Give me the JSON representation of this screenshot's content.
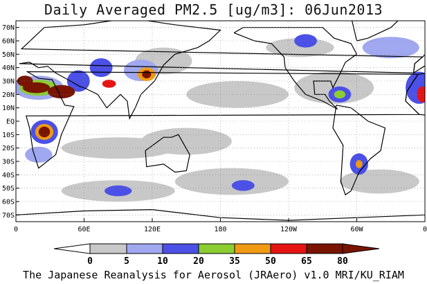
{
  "title": "Daily Averaged PM2.5 [ug/m3]: 06Jun2013",
  "footer": "The Japanese Reanalysis for Aerosol (JRAero) v1.0 MRI/KU_RIAM",
  "lat_labels": [
    "70N",
    "60N",
    "50N",
    "40N",
    "30N",
    "20N",
    "10N",
    "EQ",
    "10S",
    "20S",
    "30S",
    "40S",
    "50S",
    "60S",
    "70S"
  ],
  "lon_labels": [
    "0",
    "60E",
    "120E",
    "180",
    "120W",
    "60W",
    "0"
  ],
  "colorbar": {
    "ticks": [
      "0",
      "5",
      "10",
      "20",
      "35",
      "50",
      "65",
      "80"
    ],
    "colors": [
      "#ffffff",
      "#c8c8c8",
      "#a0a8f0",
      "#4b50e6",
      "#8ccd32",
      "#f09a14",
      "#e61414",
      "#781400"
    ]
  },
  "map": {
    "lat_range": [
      -75,
      75
    ],
    "lon_range": [
      0,
      360
    ],
    "grid": true,
    "regions": [
      {
        "lon": 20,
        "lat": 25,
        "rx": 22,
        "ry": 9,
        "level": 2
      },
      {
        "lon": 20,
        "lat": 25,
        "rx": 17,
        "ry": 6,
        "level": 4
      },
      {
        "lon": 18,
        "lat": 25,
        "rx": 12,
        "ry": 4,
        "level": 7
      },
      {
        "lon": 40,
        "lat": 22,
        "rx": 12,
        "ry": 5,
        "level": 7
      },
      {
        "lon": 8,
        "lat": 30,
        "rx": 7,
        "ry": 4,
        "level": 7
      },
      {
        "lon": 55,
        "lat": 30,
        "rx": 10,
        "ry": 8,
        "level": 3
      },
      {
        "lon": 75,
        "lat": 40,
        "rx": 10,
        "ry": 7,
        "level": 3
      },
      {
        "lon": 82,
        "lat": 28,
        "rx": 6,
        "ry": 3,
        "level": 6
      },
      {
        "lon": 110,
        "lat": 38,
        "rx": 15,
        "ry": 8,
        "level": 2
      },
      {
        "lon": 115,
        "lat": 35,
        "rx": 8,
        "ry": 5,
        "level": 5
      },
      {
        "lon": 115,
        "lat": 35,
        "rx": 4,
        "ry": 3,
        "level": 7
      },
      {
        "lon": 130,
        "lat": 45,
        "rx": 25,
        "ry": 10,
        "level": 1
      },
      {
        "lon": 25,
        "lat": -8,
        "rx": 12,
        "ry": 9,
        "level": 3
      },
      {
        "lon": 25,
        "lat": -8,
        "rx": 8,
        "ry": 6,
        "level": 5
      },
      {
        "lon": 25,
        "lat": -8,
        "rx": 5,
        "ry": 4,
        "level": 7
      },
      {
        "lon": 20,
        "lat": -25,
        "rx": 12,
        "ry": 6,
        "level": 2
      },
      {
        "lon": 195,
        "lat": 20,
        "rx": 45,
        "ry": 10,
        "level": 1
      },
      {
        "lon": 280,
        "lat": 25,
        "rx": 35,
        "ry": 12,
        "level": 1
      },
      {
        "lon": 285,
        "lat": 20,
        "rx": 10,
        "ry": 6,
        "level": 3
      },
      {
        "lon": 285,
        "lat": 20,
        "rx": 5,
        "ry": 3,
        "level": 4
      },
      {
        "lon": 302,
        "lat": -32,
        "rx": 8,
        "ry": 8,
        "level": 3
      },
      {
        "lon": 302,
        "lat": -32,
        "rx": 3,
        "ry": 3,
        "level": 5
      },
      {
        "lon": 355,
        "lat": 25,
        "rx": 12,
        "ry": 12,
        "level": 3
      },
      {
        "lon": 358,
        "lat": 20,
        "rx": 5,
        "ry": 6,
        "level": 6
      },
      {
        "lon": 250,
        "lat": 55,
        "rx": 30,
        "ry": 7,
        "level": 1
      },
      {
        "lon": 255,
        "lat": 60,
        "rx": 10,
        "ry": 5,
        "level": 3
      },
      {
        "lon": 150,
        "lat": -15,
        "rx": 40,
        "ry": 10,
        "level": 1
      },
      {
        "lon": 90,
        "lat": -20,
        "rx": 50,
        "ry": 8,
        "level": 1
      },
      {
        "lon": 90,
        "lat": -52,
        "rx": 50,
        "ry": 8,
        "level": 1
      },
      {
        "lon": 90,
        "lat": -52,
        "rx": 12,
        "ry": 4,
        "level": 3
      },
      {
        "lon": 190,
        "lat": -45,
        "rx": 50,
        "ry": 10,
        "level": 1
      },
      {
        "lon": 200,
        "lat": -48,
        "rx": 10,
        "ry": 4,
        "level": 3
      },
      {
        "lon": 320,
        "lat": -45,
        "rx": 35,
        "ry": 9,
        "level": 1
      },
      {
        "lon": 330,
        "lat": 55,
        "rx": 25,
        "ry": 8,
        "level": 2
      }
    ]
  }
}
